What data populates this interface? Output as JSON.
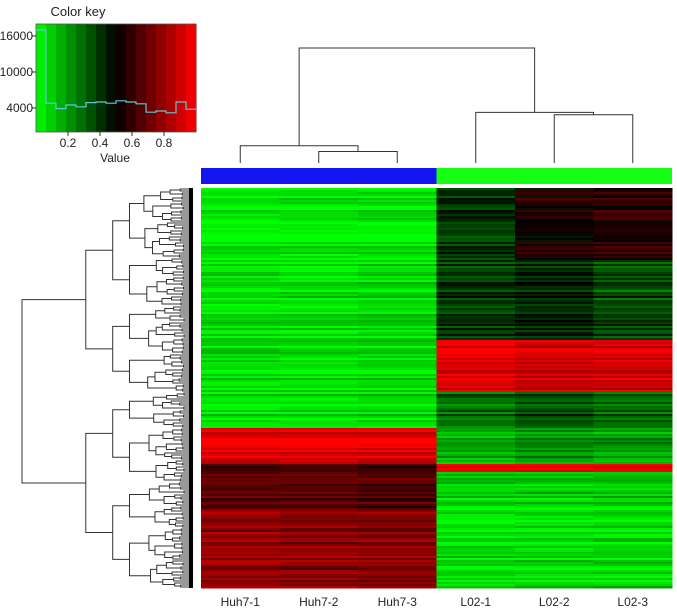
{
  "chart_data": {
    "type": "heatmap",
    "title": "",
    "color_key": {
      "title": "Color key",
      "xlabel": "Value",
      "x_ticks": [
        "0.2",
        "0.4",
        "0.6",
        "0.8"
      ],
      "x_tick_values": [
        0.2,
        0.4,
        0.6,
        0.8
      ],
      "x_range": [
        0,
        1
      ],
      "y_ticks": [
        "16000",
        "10000",
        "4000"
      ],
      "y_tick_values": [
        16000,
        10000,
        4000
      ],
      "y_range": [
        0,
        18000
      ],
      "colors": [
        "#00ff00",
        "#000000",
        "#ff0000"
      ],
      "histogram_color": "#5fc8d8",
      "histogram": [
        [
          0.0,
          17000
        ],
        [
          0.0625,
          17000
        ],
        [
          0.0625,
          4800
        ],
        [
          0.125,
          4800
        ],
        [
          0.125,
          3900
        ],
        [
          0.1875,
          3900
        ],
        [
          0.1875,
          4500
        ],
        [
          0.25,
          4500
        ],
        [
          0.25,
          4200
        ],
        [
          0.3125,
          4200
        ],
        [
          0.3125,
          4900
        ],
        [
          0.375,
          4900
        ],
        [
          0.375,
          5000
        ],
        [
          0.4375,
          5000
        ],
        [
          0.4375,
          4800
        ],
        [
          0.5,
          4800
        ],
        [
          0.5,
          5200
        ],
        [
          0.5625,
          5200
        ],
        [
          0.5625,
          5000
        ],
        [
          0.625,
          5000
        ],
        [
          0.625,
          4700
        ],
        [
          0.6875,
          4700
        ],
        [
          0.6875,
          3300
        ],
        [
          0.75,
          3300
        ],
        [
          0.75,
          3500
        ],
        [
          0.8125,
          3500
        ],
        [
          0.8125,
          3200
        ],
        [
          0.875,
          3200
        ],
        [
          0.875,
          5000
        ],
        [
          0.9375,
          5000
        ],
        [
          0.9375,
          3800
        ],
        [
          1.0,
          3800
        ]
      ]
    },
    "columns": [
      "Huh7-1",
      "Huh7-2",
      "Huh7-3",
      "L02-1",
      "L02-2",
      "L02-3"
    ],
    "column_groups": [
      {
        "name": "Huh7",
        "color": "#1414f0",
        "members": [
          "Huh7-1",
          "Huh7-2",
          "Huh7-3"
        ]
      },
      {
        "name": "L02",
        "color": "#14ff14",
        "members": [
          "L02-1",
          "L02-2",
          "L02-3"
        ]
      }
    ],
    "row_clusters": [
      {
        "fraction": 0.18,
        "values": [
          0.03,
          0.04,
          0.05,
          0.4,
          0.55,
          0.58
        ]
      },
      {
        "fraction": 0.2,
        "values": [
          0.05,
          0.05,
          0.06,
          0.38,
          0.42,
          0.35
        ]
      },
      {
        "fraction": 0.13,
        "values": [
          0.04,
          0.04,
          0.05,
          0.92,
          0.88,
          0.9
        ]
      },
      {
        "fraction": 0.09,
        "values": [
          0.06,
          0.06,
          0.07,
          0.3,
          0.35,
          0.3
        ]
      },
      {
        "fraction": 0.09,
        "values": [
          0.95,
          0.94,
          0.93,
          0.15,
          0.2,
          0.18
        ]
      },
      {
        "fraction": 0.02,
        "values": [
          0.6,
          0.62,
          0.6,
          0.95,
          0.95,
          0.95
        ]
      },
      {
        "fraction": 0.09,
        "values": [
          0.7,
          0.68,
          0.66,
          0.1,
          0.12,
          0.12
        ]
      },
      {
        "fraction": 0.2,
        "values": [
          0.78,
          0.76,
          0.75,
          0.05,
          0.05,
          0.06
        ]
      }
    ],
    "column_dendrogram": [
      {
        "left": "Huh7-2",
        "right": "Huh7-3",
        "height": 0.1
      },
      {
        "left": "Huh7-1",
        "right": "Huh7-2|Huh7-3",
        "height": 0.15
      },
      {
        "left": "L02-2",
        "right": "L02-3",
        "height": 0.42
      },
      {
        "left": "L02-1",
        "right": "L02-2|L02-3",
        "height": 0.44
      },
      {
        "left": "Huh7",
        "right": "L02",
        "height": 1.0
      }
    ]
  }
}
